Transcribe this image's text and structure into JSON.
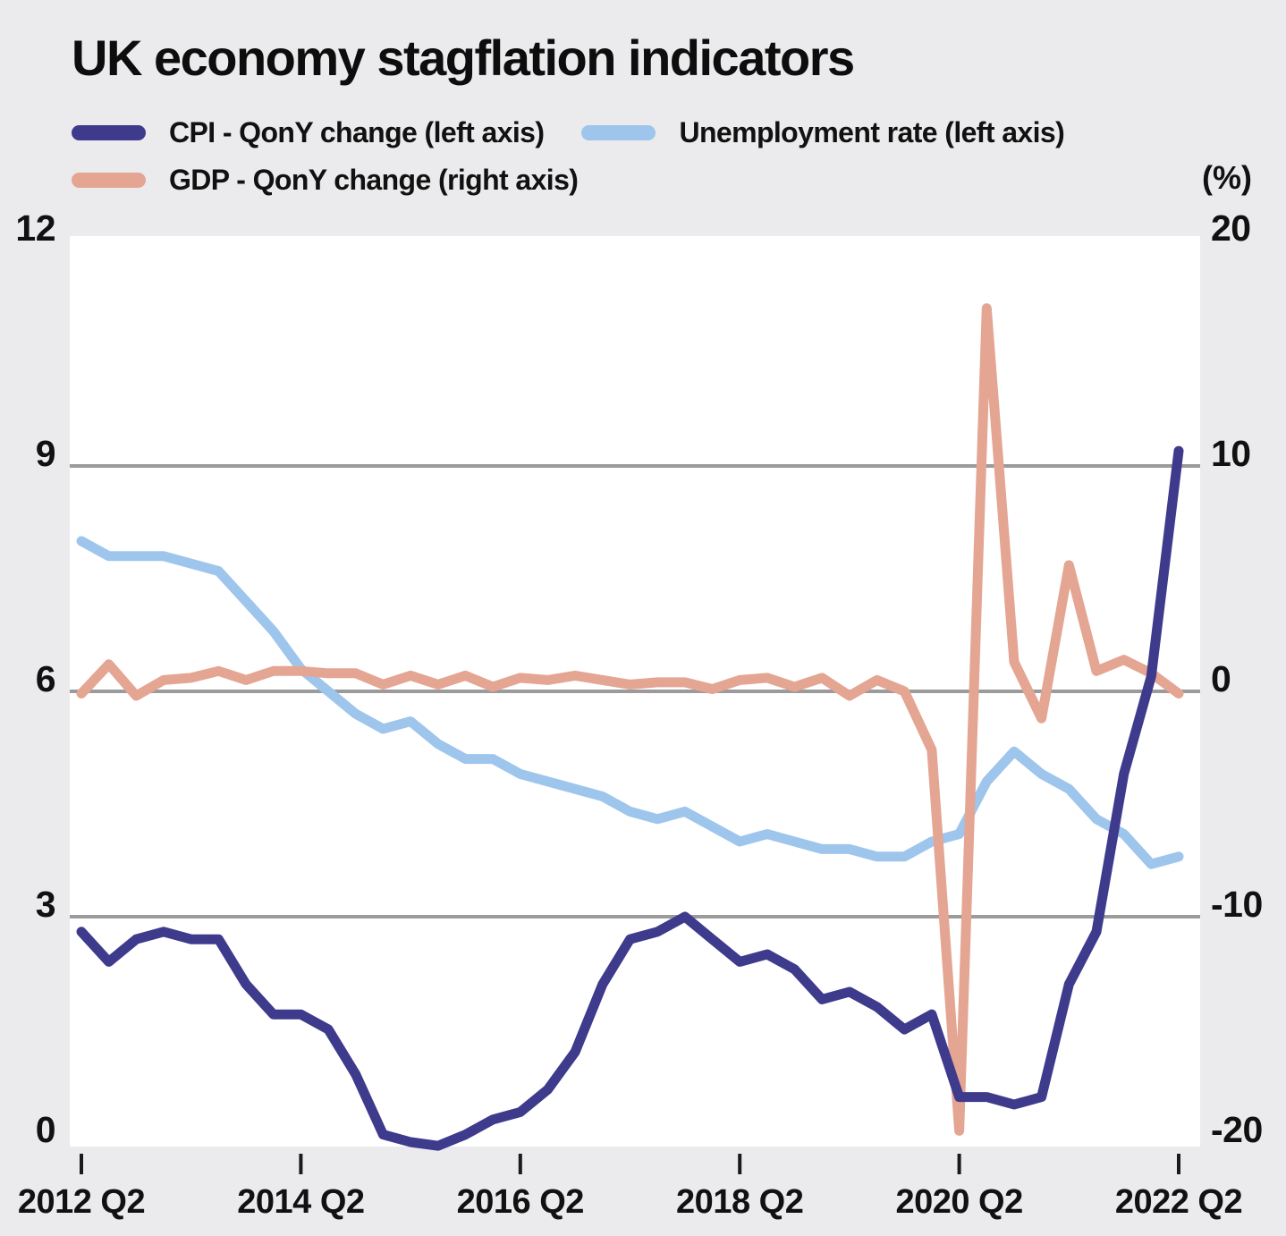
{
  "title": "UK economy stagflation indicators",
  "unit_label": "(%)",
  "legend": [
    {
      "label": "CPI - QonY change (left axis)",
      "color": "#3e3a8c"
    },
    {
      "label": "Unemployment rate (left axis)",
      "color": "#9ec5ec"
    },
    {
      "label": "GDP - QonY change (right axis)",
      "color": "#e4a593"
    }
  ],
  "colors": {
    "page_background": "#ebebed",
    "plot_background": "#ffffff",
    "gridline": "#9b9b9b",
    "tick": "#1a1a1a",
    "text": "#111111",
    "cpi_line": "#3e3a8c",
    "unemployment_line": "#9ec5ec",
    "gdp_line": "#e4a593"
  },
  "chart_data": {
    "type": "line",
    "title": "UK economy stagflation indicators",
    "unit": "%",
    "grid": "horizontal-only",
    "legend_position": "top-left",
    "categories": [
      "2012 Q2",
      "2012 Q3",
      "2012 Q4",
      "2013 Q1",
      "2013 Q2",
      "2013 Q3",
      "2013 Q4",
      "2014 Q1",
      "2014 Q2",
      "2014 Q3",
      "2014 Q4",
      "2015 Q1",
      "2015 Q2",
      "2015 Q3",
      "2015 Q4",
      "2016 Q1",
      "2016 Q2",
      "2016 Q3",
      "2016 Q4",
      "2017 Q1",
      "2017 Q2",
      "2017 Q3",
      "2017 Q4",
      "2018 Q1",
      "2018 Q2",
      "2018 Q3",
      "2018 Q4",
      "2019 Q1",
      "2019 Q2",
      "2019 Q3",
      "2019 Q4",
      "2020 Q1",
      "2020 Q2",
      "2020 Q3",
      "2020 Q4",
      "2021 Q1",
      "2021 Q2",
      "2021 Q3",
      "2021 Q4",
      "2022 Q1",
      "2022 Q2"
    ],
    "series": [
      {
        "name": "CPI - QonY change (left axis)",
        "axis": "left",
        "color": "#3e3a8c",
        "values": [
          2.8,
          2.4,
          2.7,
          2.8,
          2.7,
          2.7,
          2.1,
          1.7,
          1.7,
          1.5,
          0.9,
          0.1,
          0.0,
          -0.05,
          0.1,
          0.3,
          0.4,
          0.7,
          1.2,
          2.1,
          2.7,
          2.8,
          3.0,
          2.7,
          2.4,
          2.5,
          2.3,
          1.9,
          2.0,
          1.8,
          1.5,
          1.7,
          0.6,
          0.6,
          0.5,
          0.6,
          2.1,
          2.8,
          4.9,
          6.2,
          9.2
        ]
      },
      {
        "name": "Unemployment rate (left axis)",
        "axis": "left",
        "color": "#9ec5ec",
        "values": [
          8.0,
          7.8,
          7.8,
          7.8,
          7.7,
          7.6,
          7.2,
          6.8,
          6.3,
          6.0,
          5.7,
          5.5,
          5.6,
          5.3,
          5.1,
          5.1,
          4.9,
          4.8,
          4.7,
          4.6,
          4.4,
          4.3,
          4.4,
          4.2,
          4.0,
          4.1,
          4.0,
          3.9,
          3.9,
          3.8,
          3.8,
          4.0,
          4.1,
          4.8,
          5.2,
          4.9,
          4.7,
          4.3,
          4.1,
          3.7,
          3.8
        ]
      },
      {
        "name": "GDP - QonY change (right axis)",
        "axis": "right",
        "color": "#e4a593",
        "values": [
          -0.1,
          1.2,
          -0.2,
          0.5,
          0.6,
          0.9,
          0.5,
          0.9,
          0.9,
          0.8,
          0.8,
          0.3,
          0.7,
          0.3,
          0.7,
          0.2,
          0.6,
          0.5,
          0.7,
          0.5,
          0.3,
          0.4,
          0.4,
          0.1,
          0.5,
          0.6,
          0.2,
          0.6,
          -0.2,
          0.5,
          0.0,
          -2.6,
          -19.5,
          17.0,
          1.3,
          -1.2,
          5.6,
          0.9,
          1.4,
          0.8,
          -0.1
        ]
      }
    ],
    "left_axis": {
      "ticks": [
        0,
        3,
        6,
        9,
        12
      ],
      "labels": [
        "0",
        "3",
        "6",
        "9",
        "12"
      ],
      "range": [
        -0.07,
        12.07
      ]
    },
    "right_axis": {
      "ticks": [
        -20,
        -10,
        0,
        10,
        20
      ],
      "labels": [
        "-20",
        "-10",
        "0",
        "10",
        "20"
      ],
      "range": [
        -20.2,
        20.2
      ]
    },
    "gridlines_at_left_values": [
      3,
      6,
      9
    ],
    "x_ticks": {
      "indices": [
        0,
        8,
        16,
        24,
        32,
        40
      ],
      "labels": [
        "2012 Q2",
        "2014 Q2",
        "2016 Q2",
        "2018 Q2",
        "2020 Q2",
        "2022 Q2"
      ]
    }
  }
}
